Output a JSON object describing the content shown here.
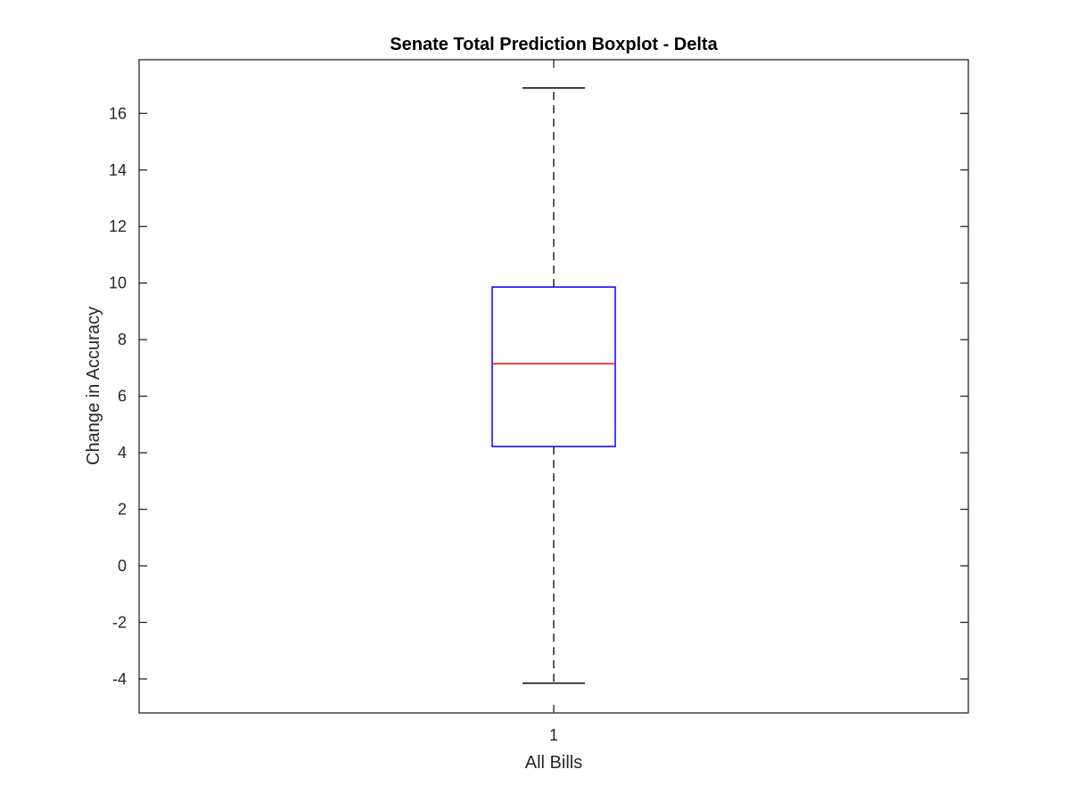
{
  "chart_data": {
    "type": "boxplot",
    "title": "Senate Total Prediction Boxplot - Delta",
    "xlabel": "All Bills",
    "ylabel": "Change in Accuracy",
    "categories": [
      "1"
    ],
    "ylim": [
      -5.2,
      17.9
    ],
    "yticks": [
      -4,
      -2,
      0,
      2,
      4,
      6,
      8,
      10,
      12,
      14,
      16
    ],
    "grid": false,
    "legend": "none",
    "boxes": [
      {
        "category": "1",
        "whisker_low": -4.15,
        "q1": 4.22,
        "median": 7.15,
        "q3": 9.86,
        "whisker_high": 16.9
      }
    ],
    "colors": {
      "box": "#0000ff",
      "median": "#ff0000",
      "whisker": "#000000",
      "axes": "#262626"
    }
  }
}
